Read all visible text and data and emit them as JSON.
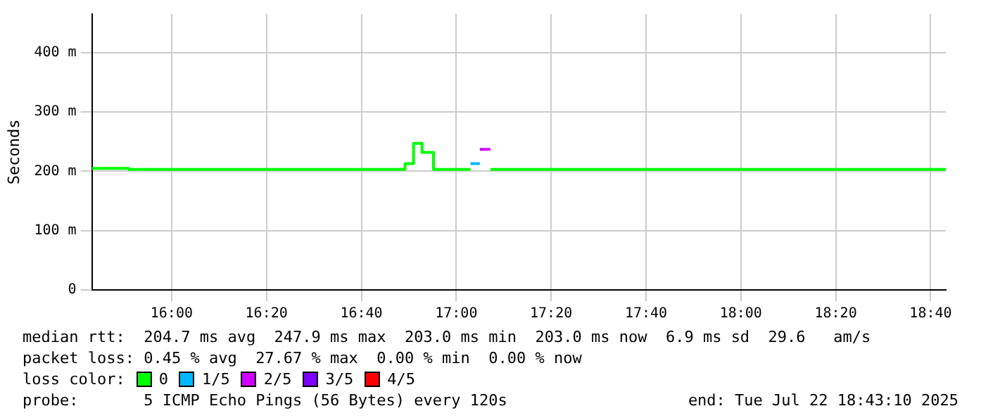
{
  "chart_data": {
    "type": "step",
    "ylabel": "Seconds",
    "xlim": [
      15.72,
      18.72
    ],
    "xticks": [
      {
        "value": 16,
        "label": "16:00"
      },
      {
        "value": 16.3333,
        "label": "16:20"
      },
      {
        "value": 16.6667,
        "label": "16:40"
      },
      {
        "value": 17,
        "label": "17:00"
      },
      {
        "value": 17.3333,
        "label": "17:20"
      },
      {
        "value": 17.6667,
        "label": "17:40"
      },
      {
        "value": 18,
        "label": "18:00"
      },
      {
        "value": 18.3333,
        "label": "18:20"
      },
      {
        "value": 18.6667,
        "label": "18:40"
      }
    ],
    "ylim": [
      0,
      465
    ],
    "yticks": [
      0,
      {
        "value": 100,
        "label": "100 m"
      },
      {
        "value": 200,
        "label": "200 m"
      },
      {
        "value": 300,
        "label": "300 m"
      },
      {
        "value": 400,
        "label": "400 m"
      }
    ],
    "grid": true,
    "legend": "bottom",
    "series": [
      {
        "name": "0",
        "color": "#00ff00",
        "x": [
          15.72,
          15.85,
          16.82,
          16.85,
          16.88,
          16.92,
          17.05,
          17.06,
          17.12,
          18.72
        ],
        "values": [
          205,
          203,
          213,
          247,
          232,
          203,
          203,
          null,
          203,
          203
        ]
      },
      {
        "name": "1/5",
        "color": "#00b8ff",
        "x": [
          17.05,
          17.083
        ],
        "values": [
          213,
          213
        ]
      },
      {
        "name": "2/5",
        "color": "#d000ff",
        "x": [
          17.083,
          17.12
        ],
        "values": [
          237,
          237
        ]
      },
      {
        "name": "3/5",
        "color": "#7e00ff"
      },
      {
        "name": "4/5",
        "color": "#ff0000"
      }
    ],
    "annotations": [
      "median rtt:  204.7 ms avg  247.9 ms max  203.0 ms min  203.0 ms now  6.9 ms sd  29.6   am/s",
      "packet loss: 0.45 % avg  27.67 % max  0.00 % min  0.00 % now",
      "loss color:",
      "probe:       5 ICMP Echo Pings (56 Bytes) every 120s",
      "end: Tue Jul 22 18:43:10 2025"
    ]
  }
}
